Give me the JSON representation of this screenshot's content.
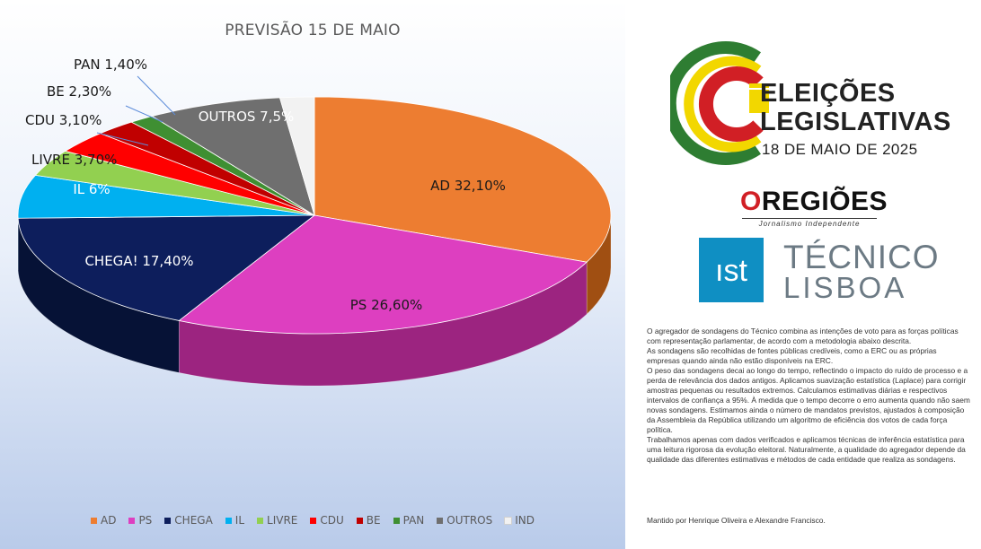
{
  "chart_data": {
    "type": "pie",
    "title": "PREVISÃO 15 DE MAIO",
    "categories": [
      "AD",
      "PS",
      "CHEGA",
      "IL",
      "LIVRE",
      "CDU",
      "BE",
      "PAN",
      "OUTROS",
      "IND"
    ],
    "values": [
      32.1,
      26.6,
      17.4,
      6.0,
      3.7,
      3.1,
      2.3,
      1.4,
      7.5,
      1.9
    ],
    "data_labels": [
      "AD 32,10%",
      "PS 26,60%",
      "CHEGA! 17,40%",
      "IL 6%",
      "LIVRE 3,70%",
      "CDU 3,10%",
      "BE 2,30%",
      "PAN 1,40%",
      "OUTROS 7,5%",
      ""
    ],
    "colors": [
      "#ed7d31",
      "#dd3fc0",
      "#0d1e5c",
      "#00b0f0",
      "#92d050",
      "#ff0000",
      "#c00000",
      "#3f8f32",
      "#6f6f6f",
      "#f2f2f2"
    ],
    "side_colors": [
      "#a04f12",
      "#9c2480",
      "#061236",
      "#0077a8",
      "#5f9428",
      "#b20000",
      "#7a0000",
      "#245a1c",
      "#454545",
      "#bfbfbf"
    ],
    "legend_position": "bottom"
  },
  "legend_items": [
    {
      "label": "AD",
      "color": "#ed7d31"
    },
    {
      "label": "PS",
      "color": "#dd3fc0"
    },
    {
      "label": "CHEGA",
      "color": "#0d1e5c"
    },
    {
      "label": "IL",
      "color": "#00b0f0"
    },
    {
      "label": "LIVRE",
      "color": "#92d050"
    },
    {
      "label": "CDU",
      "color": "#ff0000"
    },
    {
      "label": "BE",
      "color": "#c00000"
    },
    {
      "label": "PAN",
      "color": "#3f8f32"
    },
    {
      "label": "OUTROS",
      "color": "#6f6f6f"
    },
    {
      "label": "IND",
      "color": "#f2f2f2"
    }
  ],
  "logo": {
    "line1": "ELEIÇÕES",
    "line2": "LEGISLATIVAS",
    "date": "18 DE MAIO DE 2025",
    "regioes_o": "O",
    "regioes_rest": "REGIÕES",
    "regioes_tagline": "Jornalismo Independente",
    "tecnico_line1": "TÉCNICO",
    "tecnico_line2": "LISBOA",
    "ist_mark": "ıst"
  },
  "description": [
    "O agregador de sondagens do Técnico combina as intenções de voto para as forças políticas com representação parlamentar, de acordo com a metodologia abaixo descrita.",
    "As sondagens são recolhidas de fontes públicas credíveis, como a ERC ou as próprias empresas quando ainda não estão disponíveis na ERC.",
    "O peso das sondagens decai ao longo do tempo, reflectindo o impacto do ruído de processo e a perda de relevância dos dados antigos. Aplicamos suavização estatística (Laplace) para corrigir amostras pequenas ou resultados extremos. Calculamos estimativas diárias e respectivos intervalos de confiança a 95%. À medida que o tempo decorre o erro aumenta quando não saem novas sondagens. Estimamos ainda o número de mandatos previstos, ajustados à composição da Assembleia da República utilizando um algoritmo de eficiência dos votos de cada força política.",
    "Trabalhamos apenas com dados verificados e aplicamos técnicas de inferência estatística para uma leitura rigorosa da evolução eleitoral. Naturalmente, a qualidade do agregador depende da qualidade das diferentes estimativas e métodos de cada entidade que realiza as sondagens."
  ],
  "footer": "Mantido por Henrique Oliveira e Alexandre Francisco."
}
